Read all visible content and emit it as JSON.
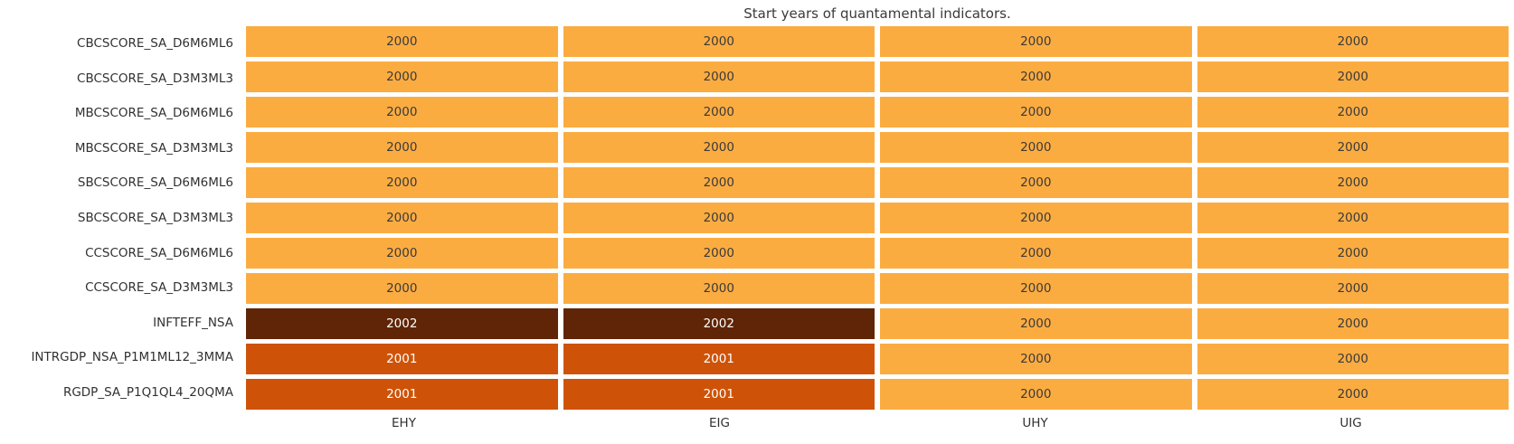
{
  "title": "Start years of quantamental indicators.",
  "chart_data": {
    "type": "heatmap",
    "title": "Start years of quantamental indicators.",
    "columns": [
      "EHY",
      "EIG",
      "UHY",
      "UIG"
    ],
    "rows": [
      "CBCSCORE_SA_D6M6ML6",
      "CBCSCORE_SA_D3M3ML3",
      "MBCSCORE_SA_D6M6ML6",
      "MBCSCORE_SA_D3M3ML3",
      "SBCSCORE_SA_D6M6ML6",
      "SBCSCORE_SA_D3M3ML3",
      "CCSCORE_SA_D6M6ML6",
      "CCSCORE_SA_D3M3ML3",
      "INFTEFF_NSA",
      "INTRGDP_NSA_P1M1ML12_3MMA",
      "RGDP_SA_P1Q1QL4_20QMA"
    ],
    "values": [
      [
        "2000",
        "2000",
        "2000",
        "2000"
      ],
      [
        "2000",
        "2000",
        "2000",
        "2000"
      ],
      [
        "2000",
        "2000",
        "2000",
        "2000"
      ],
      [
        "2000",
        "2000",
        "2000",
        "2000"
      ],
      [
        "2000",
        "2000",
        "2000",
        "2000"
      ],
      [
        "2000",
        "2000",
        "2000",
        "2000"
      ],
      [
        "2000",
        "2000",
        "2000",
        "2000"
      ],
      [
        "2000",
        "2000",
        "2000",
        "2000"
      ],
      [
        "2002",
        "2002",
        "2000",
        "2000"
      ],
      [
        "2001",
        "2001",
        "2000",
        "2000"
      ],
      [
        "2001",
        "2001",
        "2000",
        "2000"
      ]
    ],
    "value_colors": {
      "2000": "#FBAC41",
      "2001": "#CE5308",
      "2002": "#5F2506"
    },
    "value_text_colors": {
      "2000": "#3a3a3a",
      "2001": "#ffffff",
      "2002": "#ffffff"
    },
    "layout": {
      "legend": "none",
      "grid": "off",
      "cell_gap_color": "#ffffff"
    }
  }
}
